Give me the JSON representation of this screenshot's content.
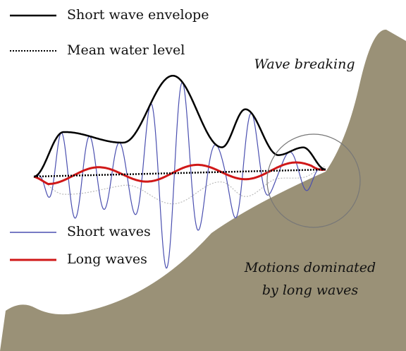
{
  "legend_top": [
    {
      "label": "Short wave envelope"
    },
    {
      "label": "Mean water level"
    }
  ],
  "legend_bottom": [
    {
      "label": "Short waves"
    },
    {
      "label": "Long waves"
    }
  ],
  "annotations": {
    "wave_breaking": "Wave breaking",
    "motions_line1": "Motions dominated",
    "motions_line2": "by long waves"
  }
}
